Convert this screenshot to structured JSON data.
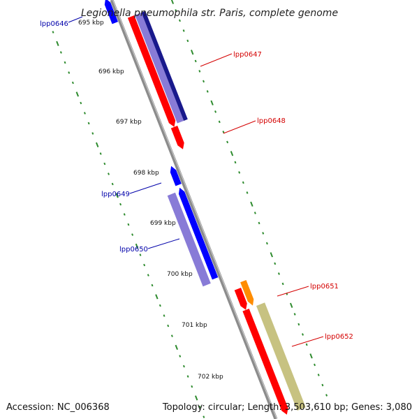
{
  "title": "Legionella pneumophila str. Paris, complete genome",
  "footer": {
    "accession": "Accession: NC_006368",
    "summary": "Topology: circular; Length: 3,503,610 bp; Genes: 3,080"
  },
  "colors": {
    "backbone": "#8c8c8c",
    "ticks": "#2e8b2e",
    "forward_cds": "#ff0000",
    "reverse_cds": "#0000ff",
    "forward_label": "#d40000",
    "reverse_label": "#0000aa",
    "forward_extra": "#ff8c00",
    "overlay_purple": "#6a5acd",
    "overlay_navy": "#000080",
    "overlay_khaki": "#bdb76b"
  },
  "scale": {
    "partial_label": "695 kbp",
    "tick_labels": [
      "696 kbp",
      "697 kbp",
      "698 kbp",
      "699 kbp",
      "700 kbp",
      "701 kbp",
      "702 kbp"
    ]
  },
  "genes": [
    {
      "id": "lpp0646",
      "label": "lpp0646",
      "strand": "reverse"
    },
    {
      "id": "lpp0647",
      "label": "lpp0647",
      "strand": "forward"
    },
    {
      "id": "lpp0648",
      "label": "lpp0648",
      "strand": "forward"
    },
    {
      "id": "lpp0649",
      "label": "lpp0649",
      "strand": "reverse"
    },
    {
      "id": "lpp0650",
      "label": "lpp0650",
      "strand": "reverse"
    },
    {
      "id": "lpp0651",
      "label": "lpp0651",
      "strand": "forward"
    },
    {
      "id": "lpp0652",
      "label": "lpp0652",
      "strand": "forward"
    }
  ]
}
